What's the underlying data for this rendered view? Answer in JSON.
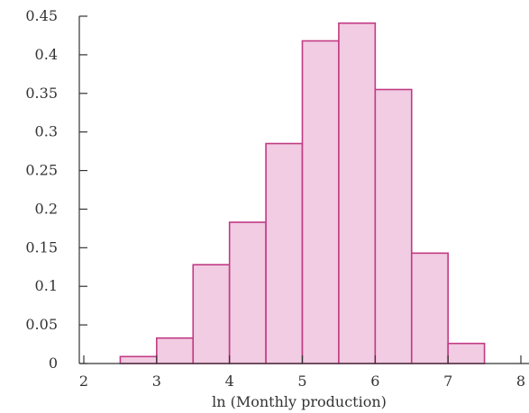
{
  "chart_data": {
    "type": "bar",
    "histogram": true,
    "xlabel": "ln (Monthly production)",
    "ylabel": "",
    "xlim": [
      2,
      8
    ],
    "ylim": [
      0,
      0.45
    ],
    "x_ticks": [
      "2",
      "3",
      "4",
      "5",
      "6",
      "7",
      "8"
    ],
    "y_ticks": [
      "0",
      "0.05",
      "0.1",
      "0.15",
      "0.2",
      "0.25",
      "0.3",
      "0.35",
      "0.4",
      "0.45"
    ],
    "bins": [
      {
        "x0": 2.5,
        "x1": 3.0,
        "value": 0.009
      },
      {
        "x0": 3.0,
        "x1": 3.5,
        "value": 0.033
      },
      {
        "x0": 3.5,
        "x1": 4.0,
        "value": 0.128
      },
      {
        "x0": 4.0,
        "x1": 4.5,
        "value": 0.183
      },
      {
        "x0": 4.5,
        "x1": 5.0,
        "value": 0.285
      },
      {
        "x0": 5.0,
        "x1": 5.5,
        "value": 0.418
      },
      {
        "x0": 5.5,
        "x1": 6.0,
        "value": 0.441
      },
      {
        "x0": 6.0,
        "x1": 6.5,
        "value": 0.355
      },
      {
        "x0": 6.5,
        "x1": 7.0,
        "value": 0.143
      },
      {
        "x0": 7.0,
        "x1": 7.5,
        "value": 0.026
      }
    ],
    "grid": false,
    "colors": {
      "bar_fill": "#f1cce2",
      "bar_stroke": "#c23a85",
      "axis": "#333333"
    }
  }
}
